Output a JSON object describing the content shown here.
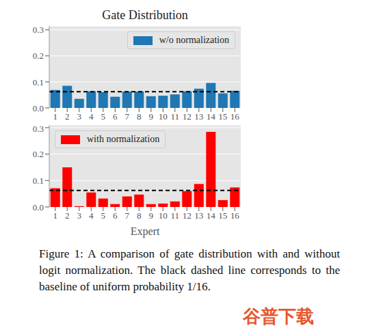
{
  "title": "Gate Distribution",
  "caption": "Figure 1: A comparison of gate distribution with and without logit normalization. The black dashed line corresponds to the baseline of uniform probability 1/16.",
  "watermark": "谷普下载",
  "chart_data": [
    {
      "type": "bar",
      "categories": [
        "1",
        "2",
        "3",
        "4",
        "5",
        "6",
        "7",
        "8",
        "9",
        "10",
        "11",
        "12",
        "13",
        "14",
        "15",
        "16"
      ],
      "series": [
        {
          "name": "w/o normalization",
          "color": "#1f77b4",
          "values": [
            0.069,
            0.085,
            0.035,
            0.064,
            0.061,
            0.043,
            0.063,
            0.063,
            0.045,
            0.047,
            0.052,
            0.064,
            0.074,
            0.096,
            0.056,
            0.066
          ]
        }
      ],
      "baseline": 0.0625,
      "ylim": [
        0,
        0.315
      ],
      "yticks": [
        {
          "value": 0,
          "label": "0.0"
        },
        {
          "value": 0.1,
          "label": "0.1"
        },
        {
          "value": 0.2,
          "label": "0.2"
        },
        {
          "value": 0.3,
          "label": "0.3"
        }
      ],
      "grid": true,
      "legend": "upper right"
    },
    {
      "type": "bar",
      "categories": [
        "1",
        "2",
        "3",
        "4",
        "5",
        "6",
        "7",
        "8",
        "9",
        "10",
        "11",
        "12",
        "13",
        "14",
        "15",
        "16"
      ],
      "series": [
        {
          "name": "with normalization",
          "color": "#ff0000",
          "values": [
            0.071,
            0.15,
            0.003,
            0.055,
            0.032,
            0.011,
            0.04,
            0.047,
            0.011,
            0.013,
            0.021,
            0.06,
            0.087,
            0.284,
            0.026,
            0.074
          ]
        }
      ],
      "baseline": 0.0625,
      "xlabel": "Expert",
      "ylim": [
        0,
        0.31
      ],
      "yticks": [
        {
          "value": 0,
          "label": "0.0"
        },
        {
          "value": 0.1,
          "label": "0.1"
        },
        {
          "value": 0.2,
          "label": "0.2"
        },
        {
          "value": 0.3,
          "label": "0.3"
        }
      ],
      "grid": true,
      "legend": "upper left"
    }
  ]
}
